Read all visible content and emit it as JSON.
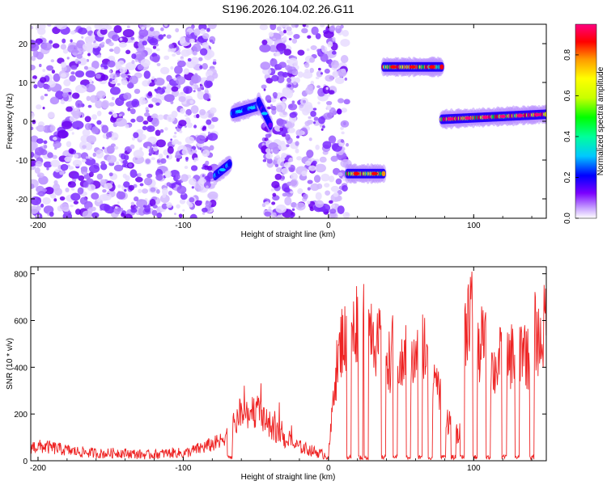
{
  "title": "S196.2026.104.02.26.G11",
  "chart_data": [
    {
      "type": "heatmap",
      "title": "S196.2026.104.02.26.G11",
      "xlabel": "Height of straight line (km)",
      "ylabel": "Frequency (Hz)",
      "xlim": [
        -205,
        150
      ],
      "ylim": [
        -25,
        25
      ],
      "xticks": [
        -200,
        -100,
        0,
        100
      ],
      "xtick_labels": [
        "-200",
        "-100",
        "0",
        "100"
      ],
      "yticks": [
        -20,
        -10,
        0,
        10,
        20
      ],
      "ytick_labels": [
        "-20",
        "-10",
        "0",
        "10",
        "20"
      ],
      "noise_regions": [
        {
          "x": [
            -205,
            -78
          ]
        },
        {
          "x": [
            -45,
            13
          ]
        }
      ],
      "signal_segments": [
        {
          "x": [
            -78,
            -68
          ],
          "y_start": -14,
          "y_end": -11,
          "peak": 0.35
        },
        {
          "x": [
            -66,
            -48
          ],
          "y_start": 2,
          "y_end": 4,
          "peak": 0.35
        },
        {
          "x": [
            -48,
            -40
          ],
          "y_start": 5,
          "y_end": -1,
          "peak": 0.3
        },
        {
          "x": [
            13,
            38
          ],
          "y_start": -13.5,
          "y_end": -13.5,
          "peak": 0.9
        },
        {
          "x": [
            38,
            78
          ],
          "y_start": 14,
          "y_end": 14,
          "peak": 0.9
        },
        {
          "x": [
            78,
            150
          ],
          "y_start": 0.5,
          "y_end": 1.8,
          "peak": 0.95
        }
      ],
      "colorbar": {
        "label": "Normalized spectral amplitude",
        "range": [
          0,
          0.95
        ],
        "ticks": [
          0.0,
          0.2,
          0.4,
          0.6,
          0.8
        ],
        "tick_labels": [
          "0.0",
          "0.2",
          "0.4",
          "0.6",
          "0.8"
        ],
        "colors": [
          "#ffffff",
          "#c9a6ff",
          "#7b00ff",
          "#0000ff",
          "#00c8ff",
          "#00ff9c",
          "#00ff00",
          "#c8ff00",
          "#ffff00",
          "#ff9900",
          "#ff0000",
          "#ff0080"
        ]
      }
    },
    {
      "type": "line",
      "xlabel": "Height of straight line (km)",
      "ylabel": "SNR (10 * v/v)",
      "xlim": [
        -205,
        150
      ],
      "ylim": [
        0,
        830
      ],
      "xticks": [
        -200,
        -100,
        0,
        100
      ],
      "xtick_labels": [
        "-200",
        "-100",
        "0",
        "100"
      ],
      "yticks": [
        0,
        200,
        400,
        600,
        800
      ],
      "ytick_labels": [
        "0",
        "200",
        "400",
        "600",
        "800"
      ],
      "series": [
        {
          "name": "SNR",
          "color": "#ee2222",
          "x": [
            -205,
            -195,
            -185,
            -175,
            -165,
            -155,
            -145,
            -135,
            -125,
            -115,
            -105,
            -100,
            -95,
            -90,
            -85,
            -80,
            -75,
            -70,
            -65,
            -60,
            -55,
            -50,
            -45,
            -40,
            -35,
            -30,
            -25,
            -20,
            -15,
            -10,
            -5,
            0,
            2,
            4,
            6,
            10,
            14,
            18,
            22,
            26,
            30,
            34,
            38,
            42,
            46,
            50,
            54,
            58,
            62,
            66,
            70,
            74,
            78,
            82,
            86,
            90,
            94,
            98,
            102,
            106,
            110,
            114,
            118,
            122,
            126,
            130,
            134,
            138,
            142,
            146,
            150
          ],
          "y": [
            60,
            60,
            50,
            40,
            35,
            30,
            35,
            30,
            25,
            30,
            35,
            30,
            40,
            50,
            60,
            70,
            80,
            120,
            150,
            200,
            180,
            220,
            170,
            150,
            120,
            90,
            70,
            60,
            50,
            40,
            30,
            20,
            150,
            350,
            400,
            550,
            450,
            580,
            620,
            540,
            600,
            480,
            560,
            420,
            520,
            380,
            480,
            400,
            460,
            520,
            300,
            380,
            240,
            180,
            140,
            90,
            560,
            700,
            420,
            520,
            460,
            380,
            440,
            390,
            460,
            430,
            510,
            420,
            560,
            500,
            620
          ]
        }
      ],
      "dropouts": [
        -68,
        14,
        22,
        26,
        38,
        46,
        55,
        63,
        70,
        79,
        86,
        92,
        101,
        110,
        121,
        130,
        140
      ]
    }
  ]
}
